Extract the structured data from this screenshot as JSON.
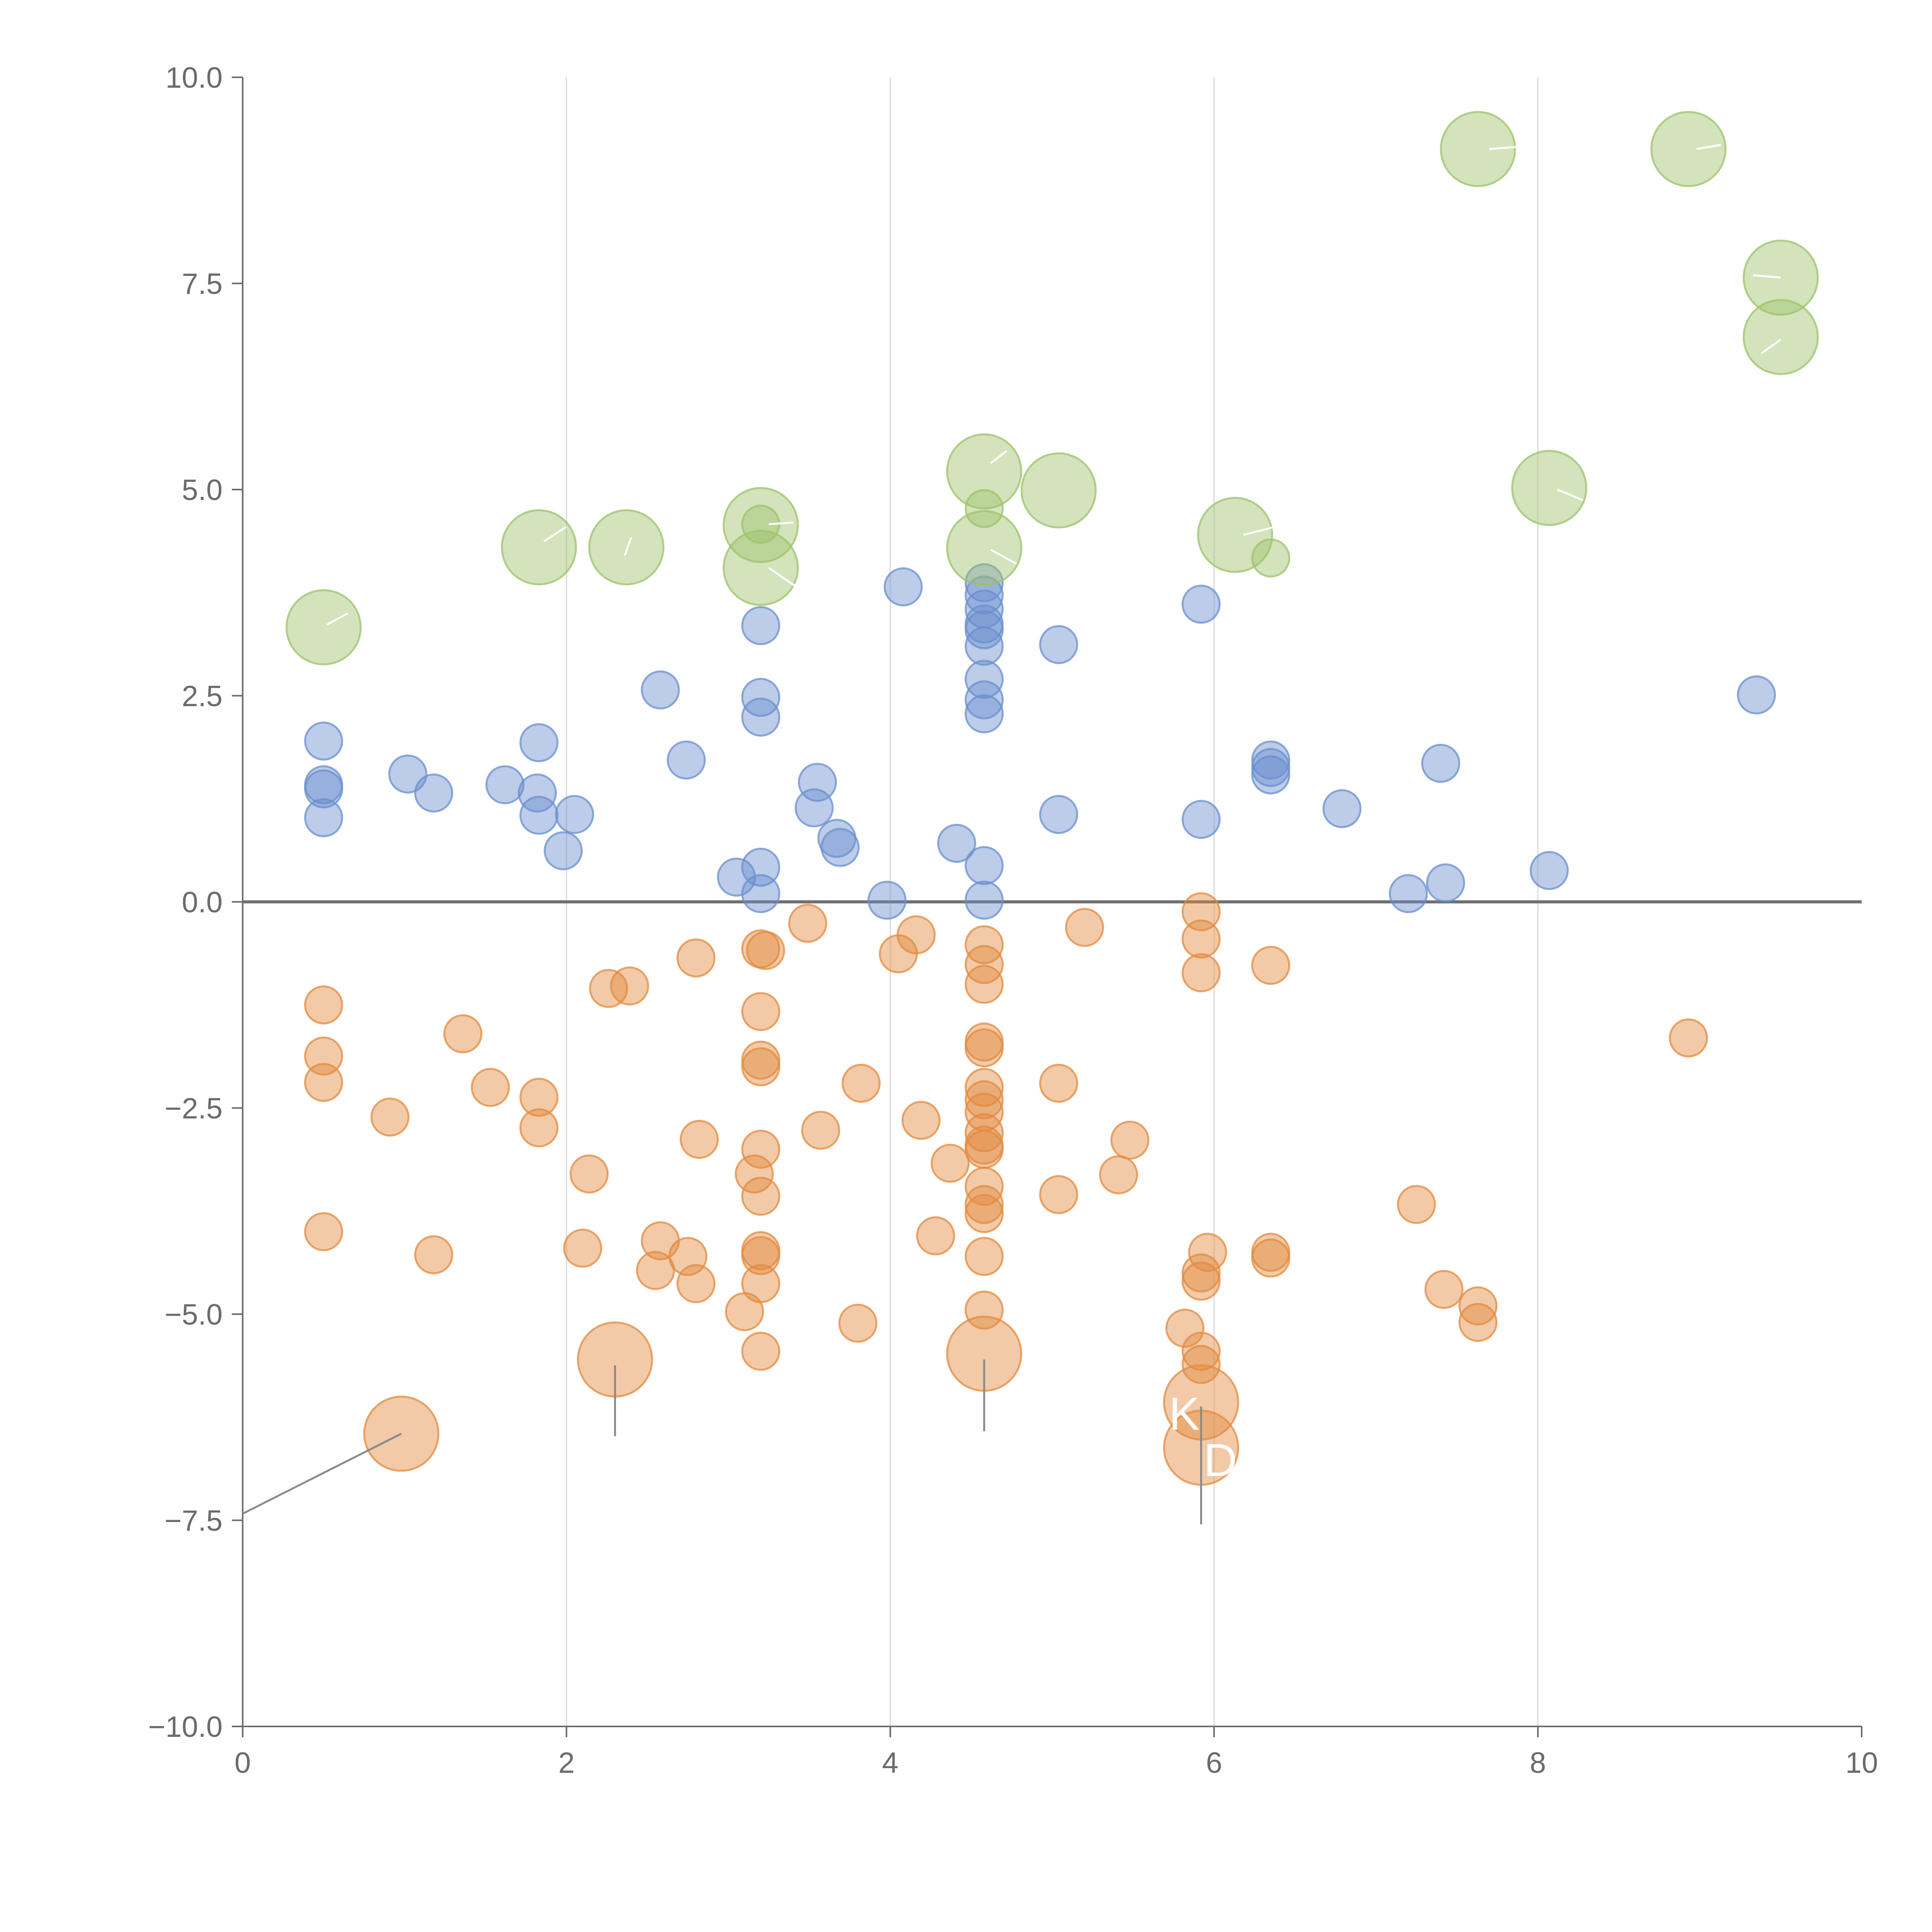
{
  "chart_data": {
    "type": "scatter",
    "title": "",
    "xlabel": "",
    "ylabel": "",
    "xlim": [
      0,
      10
    ],
    "ylim": [
      -10,
      10
    ],
    "x_ticks": [
      "0",
      "2",
      "4",
      "6",
      "8",
      "10"
    ],
    "x_tick_values": [
      0,
      2,
      4,
      6,
      8,
      10
    ],
    "y_ticks": [
      "10.0",
      "7.5",
      "5.0",
      "2.5",
      "0.0",
      "−2.5",
      "−5.0",
      "−7.5",
      "−10.0"
    ],
    "y_tick_values": [
      10,
      7.5,
      5,
      2.5,
      0,
      -2.5,
      -5,
      -7.5,
      -10
    ],
    "grid": "vertical at x ticks",
    "legend": "none",
    "colors": {
      "blue": "#6a8fce",
      "orange": "#e38a3e",
      "green": "#9dc26a"
    },
    "series": [
      {
        "name": "blue",
        "color": "#6a8fce",
        "size": "small",
        "points": [
          [
            0.5,
            1.95
          ],
          [
            0.5,
            1.42
          ],
          [
            0.5,
            1.37
          ],
          [
            0.5,
            1.02
          ],
          [
            1.02,
            1.55
          ],
          [
            1.18,
            1.32
          ],
          [
            1.62,
            1.42
          ],
          [
            1.83,
            1.93
          ],
          [
            1.82,
            1.32
          ],
          [
            1.83,
            1.05
          ],
          [
            2.05,
            1.06
          ],
          [
            1.98,
            0.62
          ],
          [
            2.58,
            2.57
          ],
          [
            2.74,
            1.72
          ],
          [
            3.05,
            0.3
          ],
          [
            3.2,
            3.35
          ],
          [
            3.2,
            2.48
          ],
          [
            3.2,
            2.24
          ],
          [
            3.2,
            0.42
          ],
          [
            3.2,
            0.1
          ],
          [
            3.55,
            1.45
          ],
          [
            3.53,
            1.14
          ],
          [
            3.67,
            0.77
          ],
          [
            3.69,
            0.66
          ],
          [
            3.98,
            0.02
          ],
          [
            4.08,
            3.82
          ],
          [
            4.41,
            0.71
          ],
          [
            4.58,
            3.87
          ],
          [
            4.58,
            3.72
          ],
          [
            4.58,
            3.55
          ],
          [
            4.58,
            3.37
          ],
          [
            4.58,
            3.3
          ],
          [
            4.58,
            3.1
          ],
          [
            4.58,
            2.7
          ],
          [
            4.58,
            2.45
          ],
          [
            4.58,
            2.28
          ],
          [
            4.58,
            0.44
          ],
          [
            4.58,
            0.02
          ],
          [
            5.04,
            3.12
          ],
          [
            5.04,
            1.06
          ],
          [
            5.92,
            3.61
          ],
          [
            5.92,
            1.0
          ],
          [
            6.35,
            1.72
          ],
          [
            6.35,
            1.63
          ],
          [
            6.35,
            1.54
          ],
          [
            6.79,
            1.13
          ],
          [
            7.2,
            0.1
          ],
          [
            7.4,
            1.68
          ],
          [
            7.43,
            0.23
          ],
          [
            8.07,
            0.38
          ],
          [
            9.35,
            2.51
          ]
        ]
      },
      {
        "name": "orange",
        "color": "#e38a3e",
        "size": "small",
        "points": [
          [
            0.5,
            -1.25
          ],
          [
            0.5,
            -1.87
          ],
          [
            0.5,
            -2.19
          ],
          [
            0.5,
            -4.0
          ],
          [
            0.91,
            -2.61
          ],
          [
            1.18,
            -4.28
          ],
          [
            1.36,
            -1.6
          ],
          [
            1.53,
            -2.25
          ],
          [
            1.83,
            -2.37
          ],
          [
            1.83,
            -2.74
          ],
          [
            2.1,
            -4.2
          ],
          [
            2.14,
            -3.3
          ],
          [
            2.26,
            -1.05
          ],
          [
            2.39,
            -1.02
          ],
          [
            2.55,
            -4.47
          ],
          [
            2.58,
            -4.11
          ],
          [
            2.75,
            -4.3
          ],
          [
            2.8,
            -0.68
          ],
          [
            2.8,
            -4.63
          ],
          [
            2.82,
            -2.88
          ],
          [
            3.1,
            -4.97
          ],
          [
            3.16,
            -3.3
          ],
          [
            3.2,
            -0.57
          ],
          [
            3.23,
            -0.59
          ],
          [
            3.2,
            -1.33
          ],
          [
            3.2,
            -1.92
          ],
          [
            3.2,
            -2.0
          ],
          [
            3.2,
            -3.0
          ],
          [
            3.2,
            -3.57
          ],
          [
            3.2,
            -4.23
          ],
          [
            3.2,
            -4.29
          ],
          [
            3.2,
            -4.63
          ],
          [
            3.2,
            -5.45
          ],
          [
            3.49,
            -0.26
          ],
          [
            3.57,
            -2.77
          ],
          [
            3.82,
            -2.2
          ],
          [
            3.8,
            -5.11
          ],
          [
            4.05,
            -0.63
          ],
          [
            4.16,
            -0.4
          ],
          [
            4.19,
            -2.65
          ],
          [
            4.28,
            -4.05
          ],
          [
            4.37,
            -3.17
          ],
          [
            4.58,
            -0.52
          ],
          [
            4.58,
            -0.76
          ],
          [
            4.58,
            -1.0
          ],
          [
            4.58,
            -1.7
          ],
          [
            4.58,
            -1.77
          ],
          [
            4.58,
            -2.25
          ],
          [
            4.58,
            -2.4
          ],
          [
            4.58,
            -2.55
          ],
          [
            4.58,
            -2.8
          ],
          [
            4.58,
            -2.95
          ],
          [
            4.58,
            -3.0
          ],
          [
            4.58,
            -3.45
          ],
          [
            4.58,
            -3.67
          ],
          [
            4.58,
            -3.78
          ],
          [
            4.58,
            -4.3
          ],
          [
            4.58,
            -4.95
          ],
          [
            5.04,
            -2.2
          ],
          [
            5.04,
            -3.55
          ],
          [
            5.2,
            -0.31
          ],
          [
            5.41,
            -3.31
          ],
          [
            5.48,
            -2.89
          ],
          [
            5.82,
            -5.17
          ],
          [
            5.92,
            -0.12
          ],
          [
            5.92,
            -0.45
          ],
          [
            5.92,
            -0.86
          ],
          [
            5.96,
            -4.25
          ],
          [
            5.92,
            -4.5
          ],
          [
            5.92,
            -4.6
          ],
          [
            5.92,
            -5.45
          ],
          [
            5.92,
            -5.61
          ],
          [
            6.35,
            -0.77
          ],
          [
            6.35,
            -4.25
          ],
          [
            6.35,
            -4.32
          ],
          [
            7.25,
            -3.67
          ],
          [
            7.42,
            -4.7
          ],
          [
            7.63,
            -4.9
          ],
          [
            7.63,
            -5.1
          ],
          [
            8.93,
            -1.65
          ]
        ]
      },
      {
        "name": "orange-large",
        "color": "#e38a3e",
        "size": "large",
        "points": [
          [
            0.98,
            -6.45
          ],
          [
            2.3,
            -5.55
          ],
          [
            4.58,
            -5.48
          ],
          [
            5.92,
            -6.07
          ],
          [
            5.92,
            -6.62
          ]
        ]
      },
      {
        "name": "green",
        "color": "#9dc26a",
        "size": "large",
        "points": [
          [
            0.5,
            3.33
          ],
          [
            1.83,
            4.3
          ],
          [
            2.37,
            4.3
          ],
          [
            3.2,
            4.57
          ],
          [
            3.2,
            4.05
          ],
          [
            4.58,
            5.22
          ],
          [
            4.58,
            4.29
          ],
          [
            5.04,
            4.99
          ],
          [
            6.13,
            4.45
          ],
          [
            7.63,
            9.13
          ],
          [
            8.07,
            5.02
          ],
          [
            8.93,
            9.13
          ],
          [
            9.5,
            7.57
          ],
          [
            9.5,
            6.85
          ]
        ]
      },
      {
        "name": "green-small",
        "color": "#9dc26a",
        "size": "small",
        "points": [
          [
            3.2,
            4.58
          ],
          [
            4.58,
            4.77
          ],
          [
            6.35,
            4.17
          ]
        ]
      }
    ],
    "annotations": [
      "K",
      "D"
    ]
  }
}
